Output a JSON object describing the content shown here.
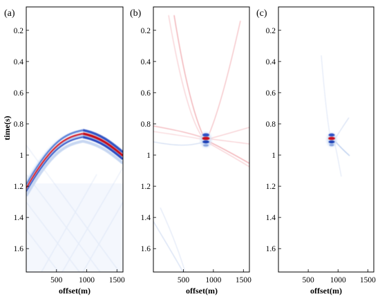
{
  "figure": {
    "panels": [
      {
        "label": "(a)",
        "xlabel": "offset(m)"
      },
      {
        "label": "(b)",
        "xlabel": "offset(m)"
      },
      {
        "label": "(c)",
        "xlabel": "offset(m)"
      }
    ],
    "ylabel": "time(s)",
    "yticks": [
      "0.2",
      "0.4",
      "0.6",
      "0.8",
      "1",
      "1.2",
      "1.4",
      "1.6"
    ],
    "xticks": [
      "500",
      "1000",
      "1500"
    ]
  },
  "chart_data": [
    {
      "type": "heatmap",
      "title": "(a)",
      "xlabel": "offset(m)",
      "ylabel": "time(s)",
      "xlim": [
        0,
        1600
      ],
      "ylim": [
        1.75,
        0.05
      ],
      "yticks": [
        0.2,
        0.4,
        0.6,
        0.8,
        1,
        1.2,
        1.4,
        1.6
      ],
      "xticks": [
        500,
        1000,
        1500
      ],
      "colormap": [
        "#1f3fb5",
        "#ffffff",
        "#d0101e"
      ],
      "events": [
        {
          "kind": "hyperbola",
          "apex_offset": 900,
          "apex_time": 0.87,
          "time_at_0": 1.17,
          "time_at_1600": 1.02
        }
      ]
    },
    {
      "type": "heatmap",
      "title": "(b)",
      "xlabel": "offset(m)",
      "xlim": [
        0,
        1600
      ],
      "ylim": [
        1.75,
        0.05
      ],
      "yticks": [
        0.2,
        0.4,
        0.6,
        0.8,
        1,
        1.2,
        1.4,
        1.6
      ],
      "xticks": [
        500,
        1000,
        1500
      ],
      "colormap": [
        "#1f3fb5",
        "#ffffff",
        "#d0101e"
      ],
      "events": [
        {
          "kind": "focused_point",
          "offset": 900,
          "time": 0.87
        },
        {
          "kind": "residual_arcs",
          "through_offset": 900,
          "through_time": 0.87
        }
      ]
    },
    {
      "type": "heatmap",
      "title": "(c)",
      "xlabel": "offset(m)",
      "xlim": [
        0,
        1600
      ],
      "ylim": [
        1.75,
        0.05
      ],
      "yticks": [
        0.2,
        0.4,
        0.6,
        0.8,
        1,
        1.2,
        1.4,
        1.6
      ],
      "xticks": [
        500,
        1000,
        1500
      ],
      "colormap": [
        "#1f3fb5",
        "#ffffff",
        "#d0101e"
      ],
      "events": [
        {
          "kind": "focused_point",
          "offset": 900,
          "time": 0.87
        },
        {
          "kind": "residual_arcs",
          "through_offset": 900,
          "through_time": 0.87
        }
      ]
    }
  ]
}
